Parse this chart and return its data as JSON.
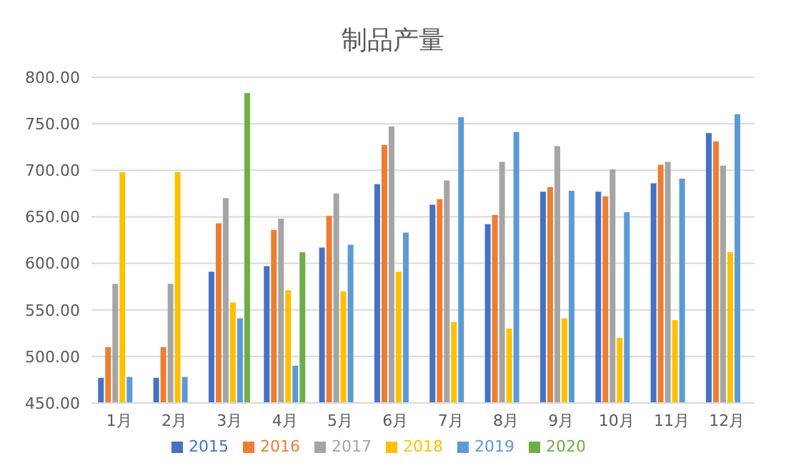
{
  "chart_data": {
    "type": "bar",
    "title": "制品产量",
    "categories": [
      "1月",
      "2月",
      "3月",
      "4月",
      "5月",
      "6月",
      "7月",
      "8月",
      "9月",
      "10月",
      "11月",
      "12月"
    ],
    "series": [
      {
        "name": "2015",
        "color": "#4472c4",
        "values": [
          477,
          477,
          591,
          597,
          617,
          685,
          663,
          642,
          677,
          677,
          686,
          740
        ]
      },
      {
        "name": "2016",
        "color": "#ed7d31",
        "values": [
          510,
          510,
          643,
          636,
          651,
          727,
          669,
          652,
          682,
          672,
          706,
          731
        ]
      },
      {
        "name": "2017",
        "color": "#a5a5a5",
        "values": [
          578,
          578,
          670,
          648,
          675,
          747,
          689,
          709,
          726,
          701,
          709,
          705
        ]
      },
      {
        "name": "2018",
        "color": "#ffc000",
        "values": [
          698,
          698,
          558,
          571,
          570,
          591,
          537,
          530,
          541,
          520,
          539,
          612
        ]
      },
      {
        "name": "2019",
        "color": "#5b9bd5",
        "values": [
          478,
          478,
          541,
          490,
          620,
          633,
          757,
          741,
          678,
          655,
          691,
          760
        ]
      },
      {
        "name": "2020",
        "color": "#70ad47",
        "values": [
          null,
          null,
          783,
          612,
          null,
          null,
          null,
          null,
          null,
          null,
          null,
          null
        ]
      }
    ],
    "ylim": [
      450,
      800
    ],
    "yticks": [
      {
        "value": 450,
        "label": "450.00"
      },
      {
        "value": 500,
        "label": "500.00"
      },
      {
        "value": 550,
        "label": "550.00"
      },
      {
        "value": 600,
        "label": "600.00"
      },
      {
        "value": 650,
        "label": "650.00"
      },
      {
        "value": 700,
        "label": "700.00"
      },
      {
        "value": 750,
        "label": "750.00"
      },
      {
        "value": 800,
        "label": "800.00"
      }
    ],
    "grid": "y",
    "legend": "bottom"
  }
}
